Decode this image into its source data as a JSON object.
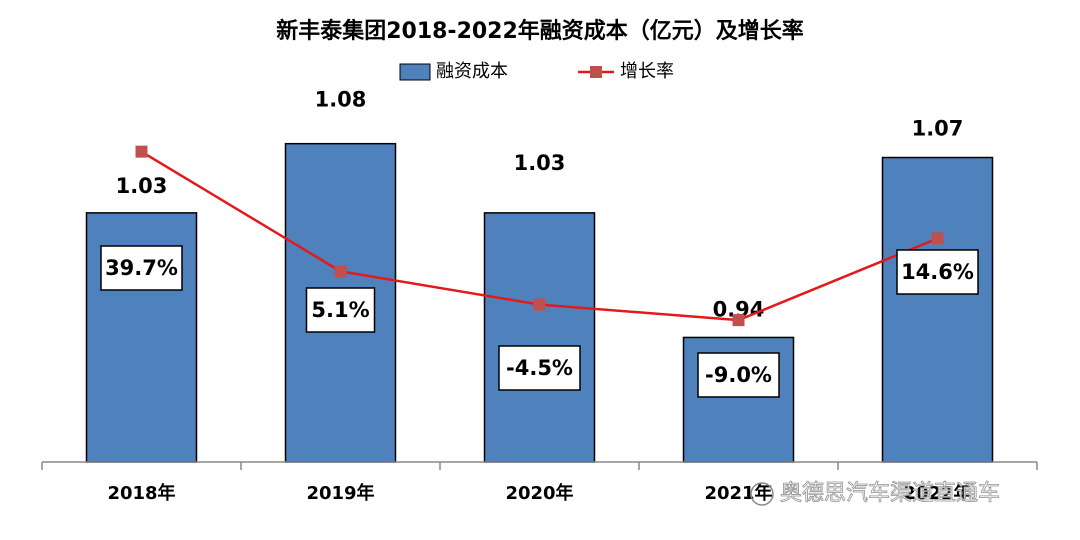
{
  "chart_data": {
    "type": "bar_line",
    "title": "新丰泰集团2018-2022年融资成本（亿元）及增长率",
    "categories": [
      "2018年",
      "2019年",
      "2020年",
      "2021年",
      "2022年"
    ],
    "series": [
      {
        "name": "融资成本",
        "color": "#4f81bd",
        "type": "bar",
        "values": [
          1.03,
          1.08,
          1.03,
          0.94,
          1.07
        ]
      },
      {
        "name": "增长率",
        "color": "#e3191b",
        "marker_color": "#c0504d",
        "type": "line",
        "axis": "y2",
        "values": [
          39.7,
          5.1,
          -4.5,
          -9.0,
          14.6
        ],
        "value_labels": [
          "39.7%",
          "5.1%",
          "-4.5%",
          "-9.0%",
          "14.6%"
        ]
      }
    ],
    "ylim": [
      0.85,
      1.1
    ],
    "y2lim": [
      -50,
      50
    ],
    "legend": "top",
    "watermark": "奥德思汽车渠道直通车"
  }
}
